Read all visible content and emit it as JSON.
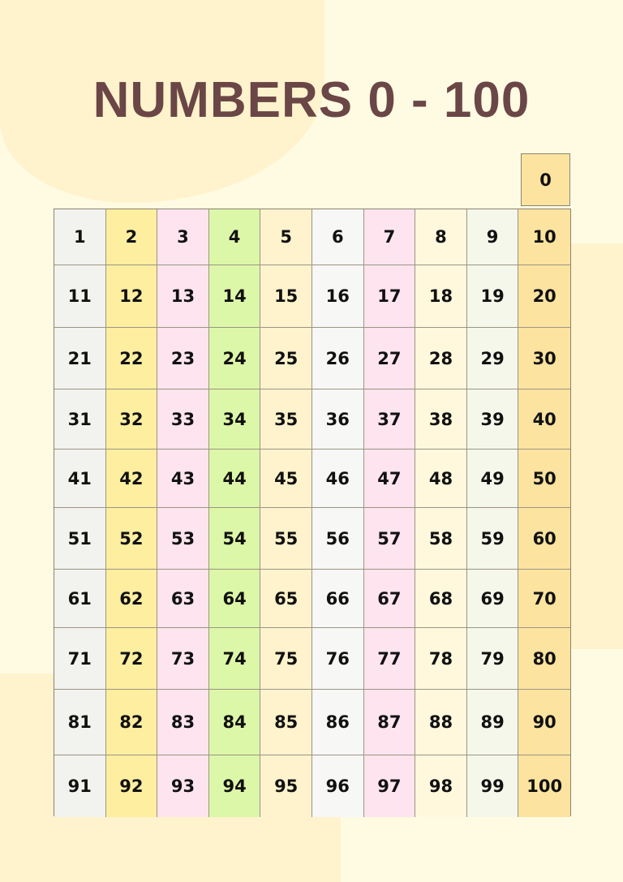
{
  "title": "NUMBERS 0 - 100",
  "zero": "0",
  "column_colors": [
    "#f2f2ee",
    "#fdeea0",
    "#fde4ee",
    "#ddf7a8",
    "#fef3cc",
    "#f7f7f5",
    "#fde4ee",
    "#fff8dc",
    "#f5f7ea",
    "#fde3a0"
  ],
  "background_color": "#fffbe3",
  "title_color": "#6b4646"
}
